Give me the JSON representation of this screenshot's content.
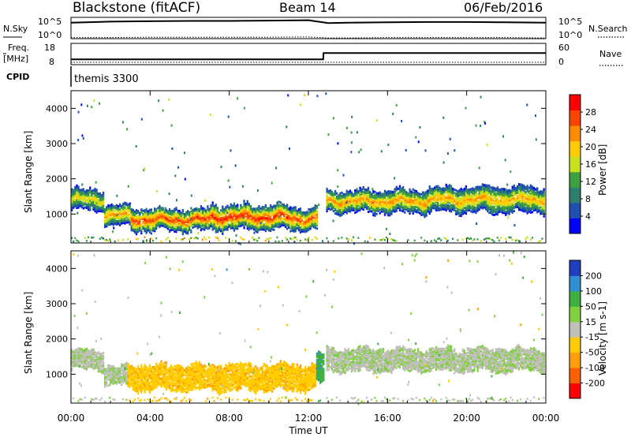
{
  "header": {
    "station": "Blackstone (fitACF)",
    "beam": "Beam 14",
    "date": "06/Feb/2016"
  },
  "noise_panel": {
    "left_label": "N.Sky",
    "right_label": "N.Search",
    "left_ticks": [
      "10^5",
      "10^0"
    ],
    "right_ticks": [
      "10^5",
      "10^0"
    ]
  },
  "freq_panel": {
    "left_label_top": "Freq.",
    "left_label_unit": "[MHz]",
    "right_label": "Nave",
    "left_ticks": [
      "18",
      "8"
    ],
    "right_ticks": [
      "60",
      "0"
    ]
  },
  "cpid": {
    "label": "CPID",
    "value": "themis 3300"
  },
  "x_axis": {
    "title": "Time UT",
    "ticks": [
      "00:00",
      "04:00",
      "08:00",
      "12:00",
      "16:00",
      "20:00",
      "00:00"
    ]
  },
  "power_panel": {
    "ylabel": "Slant Range [km]",
    "yticks": [
      "4000",
      "3000",
      "2000",
      "1000"
    ],
    "colorbar_label": "Power [dB]",
    "colorbar_ticks": [
      "28",
      "24",
      "20",
      "16",
      "12",
      "8",
      "4"
    ],
    "colors": [
      "#0000ff",
      "#1f4faf",
      "#2f7f6f",
      "#3fa040",
      "#c8e020",
      "#ffcc00",
      "#ff8c00",
      "#ff4400",
      "#ff0000"
    ]
  },
  "velocity_panel": {
    "ylabel": "Slant Range [km]",
    "yticks": [
      "4000",
      "3000",
      "2000",
      "1000"
    ],
    "colorbar_label": "Velocity [m s-1]",
    "colorbar_ticks": [
      "200",
      "100",
      "50",
      "15",
      "-15",
      "-50",
      "-100",
      "-200"
    ],
    "colors": [
      "#1f3fbf",
      "#2f8fd0",
      "#3fb040",
      "#80d040",
      "#c0c0b8",
      "#ffcc00",
      "#ffa000",
      "#ff6000",
      "#ff0000"
    ]
  },
  "chart_data": [
    {
      "type": "line",
      "name": "noise",
      "x": [
        "00:00",
        "02:00",
        "04:00",
        "06:00",
        "08:00",
        "10:00",
        "12:00",
        "13:00",
        "14:00",
        "16:00",
        "18:00",
        "20:00",
        "22:00",
        "24:00"
      ],
      "series": [
        {
          "name": "N.Sky",
          "values": [
            4.5,
            4.8,
            4.9,
            5.0,
            5.0,
            5.1,
            5.2,
            4.4,
            4.5,
            4.6,
            4.7,
            4.7,
            4.6,
            4.5
          ]
        },
        {
          "name": "N.Search",
          "values": [
            0.3,
            0.3,
            0.4,
            0.4,
            0.4,
            0.4,
            0.5,
            0.2,
            0.2,
            0.3,
            0.3,
            0.3,
            0.3,
            0.2
          ]
        }
      ],
      "ylim": [
        0,
        6
      ]
    },
    {
      "type": "line",
      "name": "frequency-nave",
      "x": [
        "00:00",
        "12:45",
        "12:46",
        "24:00"
      ],
      "series": [
        {
          "name": "Freq.",
          "values": [
            10.5,
            10.5,
            13.5,
            13.5
          ]
        },
        {
          "name": "Nave",
          "values": [
            1,
            1,
            1,
            1
          ]
        }
      ],
      "ylim": [
        8,
        18
      ]
    },
    {
      "type": "heatmap",
      "name": "power",
      "xlim": [
        "00:00",
        "24:00"
      ],
      "ylim": [
        180,
        4500
      ],
      "value_range": [
        0,
        30
      ],
      "bands": [
        {
          "t_start": 0.0,
          "t_end": 1.6,
          "r_center": 1450,
          "half_width": 280,
          "peak": 18
        },
        {
          "t_start": 1.6,
          "t_end": 3.0,
          "r_center": 1000,
          "half_width": 260,
          "peak": 22
        },
        {
          "t_start": 3.0,
          "t_end": 7.0,
          "r_center": 880,
          "half_width": 300,
          "peak": 26
        },
        {
          "t_start": 7.0,
          "t_end": 11.0,
          "r_center": 950,
          "half_width": 330,
          "peak": 27
        },
        {
          "t_start": 11.0,
          "t_end": 12.5,
          "r_center": 900,
          "half_width": 300,
          "peak": 25
        },
        {
          "t_start": 12.9,
          "t_end": 18.0,
          "r_center": 1400,
          "half_width": 300,
          "peak": 22
        },
        {
          "t_start": 18.0,
          "t_end": 24.0,
          "r_center": 1450,
          "half_width": 330,
          "peak": 21
        }
      ]
    },
    {
      "type": "heatmap",
      "name": "velocity",
      "xlim": [
        "00:00",
        "24:00"
      ],
      "ylim": [
        180,
        4500
      ],
      "value_range": [
        -250,
        250
      ],
      "bands": [
        {
          "t_start": 0.0,
          "t_end": 1.6,
          "r_center": 1450,
          "half_width": 260,
          "velocity": 0
        },
        {
          "t_start": 1.6,
          "t_end": 2.8,
          "r_center": 1000,
          "half_width": 260,
          "velocity": 0
        },
        {
          "t_start": 2.8,
          "t_end": 12.4,
          "r_center": 950,
          "half_width": 340,
          "velocity": -40
        },
        {
          "t_start": 12.4,
          "t_end": 12.8,
          "r_center": 1200,
          "half_width": 400,
          "velocity": 40
        },
        {
          "t_start": 12.9,
          "t_end": 24.0,
          "r_center": 1450,
          "half_width": 300,
          "velocity": 0
        }
      ]
    }
  ]
}
